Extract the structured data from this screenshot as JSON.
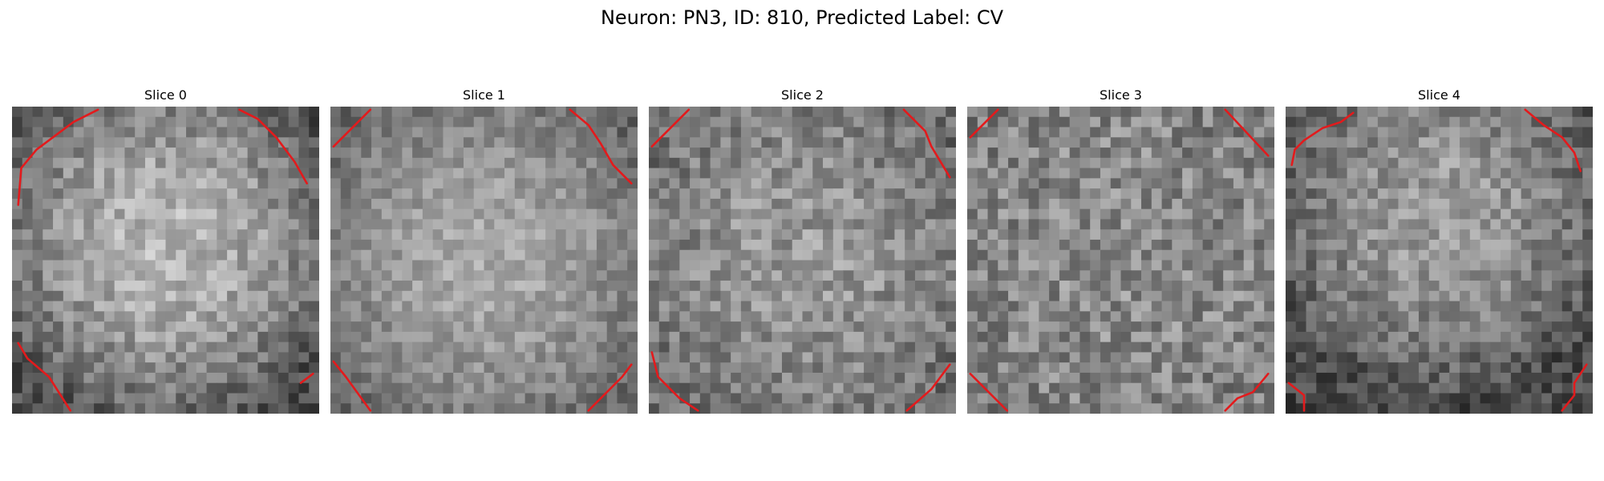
{
  "figure": {
    "title": "Neuron: PN3, ID: 810, Predicted Label: CV"
  },
  "colors": {
    "contour": "#e31a1c",
    "colormap": "gray"
  },
  "grid_size": 30,
  "slices": [
    {
      "title": "Slice 0",
      "brightness": {
        "center": 0.72,
        "edge": 0.3,
        "center_shift": [
          0.0,
          -0.05
        ],
        "noise": 0.28
      },
      "contours": [
        [
          [
            0.02,
            0.32
          ],
          [
            0.03,
            0.2
          ],
          [
            0.08,
            0.14
          ],
          [
            0.12,
            0.11
          ],
          [
            0.2,
            0.05
          ],
          [
            0.28,
            0.01
          ]
        ],
        [
          [
            0.74,
            0.01
          ],
          [
            0.8,
            0.04
          ],
          [
            0.86,
            0.1
          ],
          [
            0.92,
            0.18
          ],
          [
            0.96,
            0.25
          ]
        ],
        [
          [
            0.02,
            0.77
          ],
          [
            0.05,
            0.82
          ],
          [
            0.12,
            0.88
          ],
          [
            0.19,
            0.99
          ]
        ],
        [
          [
            0.94,
            0.9
          ],
          [
            0.98,
            0.87
          ]
        ]
      ]
    },
    {
      "title": "Slice 1",
      "brightness": {
        "center": 0.66,
        "edge": 0.4,
        "center_shift": [
          0.0,
          0.0
        ],
        "noise": 0.22
      },
      "contours": [
        [
          [
            0.01,
            0.13
          ],
          [
            0.13,
            0.01
          ]
        ],
        [
          [
            0.78,
            0.01
          ],
          [
            0.84,
            0.06
          ],
          [
            0.88,
            0.12
          ],
          [
            0.92,
            0.19
          ],
          [
            0.98,
            0.25
          ]
        ],
        [
          [
            0.01,
            0.83
          ],
          [
            0.05,
            0.88
          ],
          [
            0.13,
            0.99
          ]
        ],
        [
          [
            0.84,
            0.99
          ],
          [
            0.9,
            0.93
          ],
          [
            0.95,
            0.88
          ],
          [
            0.98,
            0.84
          ]
        ]
      ]
    },
    {
      "title": "Slice 2",
      "brightness": {
        "center": 0.6,
        "edge": 0.42,
        "center_shift": [
          0.0,
          0.0
        ],
        "noise": 0.3
      },
      "contours": [
        [
          [
            0.01,
            0.13
          ],
          [
            0.13,
            0.01
          ]
        ],
        [
          [
            0.83,
            0.01
          ],
          [
            0.9,
            0.08
          ],
          [
            0.92,
            0.13
          ],
          [
            0.98,
            0.23
          ]
        ],
        [
          [
            0.01,
            0.8
          ],
          [
            0.03,
            0.88
          ],
          [
            0.1,
            0.95
          ],
          [
            0.16,
            0.99
          ]
        ],
        [
          [
            0.84,
            0.99
          ],
          [
            0.92,
            0.92
          ],
          [
            0.98,
            0.84
          ]
        ]
      ]
    },
    {
      "title": "Slice 3",
      "brightness": {
        "center": 0.55,
        "edge": 0.5,
        "center_shift": [
          0.0,
          0.0
        ],
        "noise": 0.34
      },
      "contours": [
        [
          [
            0.01,
            0.1
          ],
          [
            0.1,
            0.01
          ]
        ],
        [
          [
            0.84,
            0.01
          ],
          [
            0.98,
            0.16
          ]
        ],
        [
          [
            0.01,
            0.87
          ],
          [
            0.13,
            0.99
          ]
        ],
        [
          [
            0.84,
            0.99
          ],
          [
            0.88,
            0.95
          ],
          [
            0.93,
            0.93
          ],
          [
            0.98,
            0.87
          ]
        ]
      ]
    },
    {
      "title": "Slice 4",
      "brightness": {
        "center": 0.62,
        "edge": 0.28,
        "center_shift": [
          0.0,
          -0.15
        ],
        "noise": 0.28
      },
      "contours": [
        [
          [
            0.02,
            0.19
          ],
          [
            0.03,
            0.14
          ],
          [
            0.06,
            0.11
          ],
          [
            0.12,
            0.07
          ],
          [
            0.18,
            0.05
          ],
          [
            0.22,
            0.02
          ]
        ],
        [
          [
            0.78,
            0.01
          ],
          [
            0.84,
            0.06
          ],
          [
            0.9,
            0.1
          ],
          [
            0.94,
            0.15
          ],
          [
            0.96,
            0.21
          ]
        ],
        [
          [
            0.01,
            0.9
          ],
          [
            0.06,
            0.94
          ],
          [
            0.06,
            0.99
          ]
        ],
        [
          [
            0.9,
            0.99
          ],
          [
            0.94,
            0.94
          ],
          [
            0.94,
            0.9
          ],
          [
            0.98,
            0.84
          ]
        ]
      ]
    }
  ]
}
